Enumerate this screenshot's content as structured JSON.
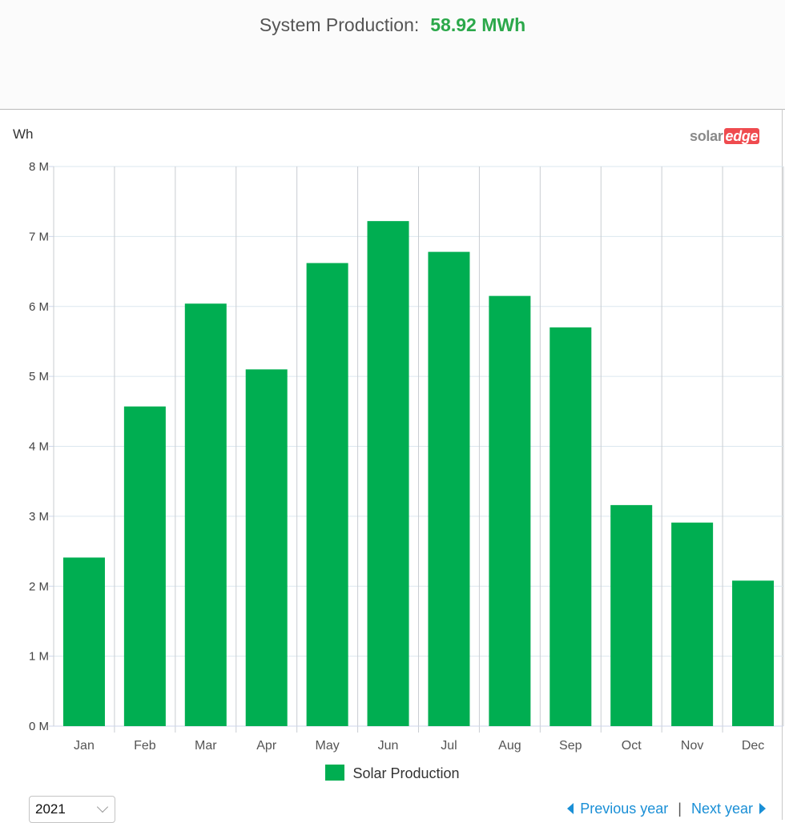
{
  "header": {
    "label": "System Production:",
    "value": "58.92 MWh"
  },
  "brand": {
    "part1": "solar",
    "part2": "edge"
  },
  "controls": {
    "year": "2021",
    "prev_label": "Previous year",
    "next_label": "Next year",
    "separator": "|"
  },
  "colors": {
    "bar": "#00ae51",
    "value_text": "#2ba84a",
    "link": "#1a8fd6"
  },
  "chart_data": {
    "type": "bar",
    "ylabel": "Wh",
    "ylim": [
      0,
      8000000
    ],
    "yticks": [
      0,
      1000000,
      2000000,
      3000000,
      4000000,
      5000000,
      6000000,
      7000000,
      8000000
    ],
    "ytick_labels": [
      "0 M",
      "1 M",
      "2 M",
      "3 M",
      "4 M",
      "5 M",
      "6 M",
      "7 M",
      "8 M"
    ],
    "categories": [
      "Jan",
      "Feb",
      "Mar",
      "Apr",
      "May",
      "Jun",
      "Jul",
      "Aug",
      "Sep",
      "Oct",
      "Nov",
      "Dec"
    ],
    "series": [
      {
        "name": "Solar Production",
        "values": [
          2410000,
          4570000,
          6040000,
          5100000,
          6620000,
          7220000,
          6780000,
          6150000,
          5700000,
          3160000,
          2910000,
          2080000
        ]
      }
    ],
    "grid": true,
    "legend": "bottom-center"
  }
}
